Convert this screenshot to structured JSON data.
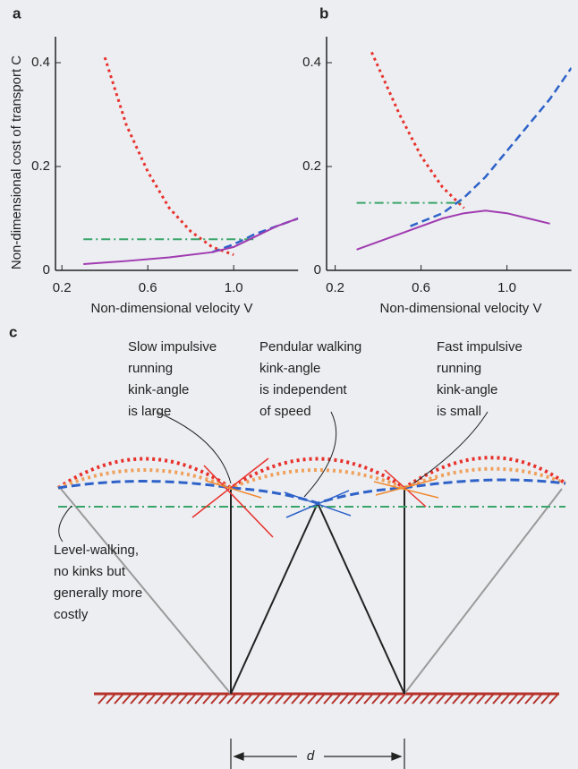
{
  "chart_data": [
    {
      "type": "line",
      "panel": "a",
      "ylabel": "Non-dimensional cost of transport C",
      "xlabel": "Non-dimensional velocity V",
      "xlim": [
        0.17,
        1.3
      ],
      "ylim": [
        0,
        0.45
      ],
      "xticks": [
        0.2,
        0.6,
        {
          "value": 1,
          "label": "1.0"
        }
      ],
      "yticks": [
        0,
        0.2,
        0.4
      ],
      "series": [
        {
          "color": "#e8312b",
          "style": "dotted",
          "x": [
            0.4,
            0.5,
            0.6,
            0.7,
            0.8,
            0.9,
            1.0
          ],
          "values": [
            0.41,
            0.28,
            0.19,
            0.12,
            0.075,
            0.045,
            0.03
          ]
        },
        {
          "color": "#2e62c9",
          "style": "dashed",
          "x": [
            0.9,
            1.0,
            1.1,
            1.2,
            1.3
          ],
          "values": [
            0.035,
            0.05,
            0.07,
            0.085,
            0.1
          ]
        },
        {
          "color": "#3aa56a",
          "style": "dashdot",
          "x": [
            0.3,
            1.1
          ],
          "values": [
            0.06,
            0.06
          ]
        },
        {
          "color": "#a03bb0",
          "style": "solid",
          "x": [
            0.3,
            0.5,
            0.7,
            0.9,
            1.0,
            1.1,
            1.2,
            1.3
          ],
          "values": [
            0.012,
            0.018,
            0.025,
            0.035,
            0.045,
            0.065,
            0.085,
            0.1
          ]
        }
      ]
    },
    {
      "type": "line",
      "panel": "b",
      "xlabel": "Non-dimensional velocity V",
      "xlim": [
        0.16,
        1.3
      ],
      "ylim": [
        0,
        0.45
      ],
      "xticks": [
        0.2,
        0.6,
        {
          "value": 1,
          "label": "1.0"
        }
      ],
      "yticks": [
        0,
        0.2,
        0.4
      ],
      "series": [
        {
          "color": "#e8312b",
          "style": "dotted",
          "x": [
            0.37,
            0.5,
            0.6,
            0.7,
            0.8
          ],
          "values": [
            0.42,
            0.3,
            0.22,
            0.16,
            0.12
          ]
        },
        {
          "color": "#2e62c9",
          "style": "dashed",
          "x": [
            0.55,
            0.7,
            0.8,
            0.9,
            1.0,
            1.1,
            1.2,
            1.3
          ],
          "values": [
            0.085,
            0.11,
            0.14,
            0.18,
            0.23,
            0.28,
            0.33,
            0.39
          ]
        },
        {
          "color": "#3aa56a",
          "style": "dashdot",
          "x": [
            0.3,
            0.8
          ],
          "values": [
            0.13,
            0.13
          ]
        },
        {
          "color": "#a03bb0",
          "style": "solid",
          "x": [
            0.3,
            0.5,
            0.7,
            0.8,
            0.9,
            1.0,
            1.1,
            1.2
          ],
          "values": [
            0.04,
            0.07,
            0.1,
            0.11,
            0.115,
            0.11,
            0.1,
            0.09
          ]
        }
      ]
    }
  ],
  "diagram": {
    "panel": "c",
    "annotations": [
      {
        "lines": [
          "Slow impulsive",
          "running",
          "kink-angle",
          "is large"
        ]
      },
      {
        "lines": [
          "Pendular walking",
          "kink-angle",
          "is independent",
          "of speed"
        ]
      },
      {
        "lines": [
          "Fast impulsive",
          "running",
          "kink-angle",
          "is small"
        ]
      },
      {
        "lines": [
          "Level-walking,",
          "no kinks but",
          "generally more",
          "costly"
        ]
      }
    ],
    "distance_label": "d"
  }
}
